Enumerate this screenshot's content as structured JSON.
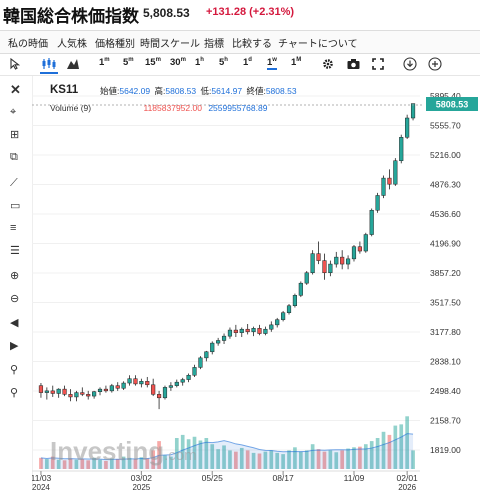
{
  "header": {
    "title": "韓国総合株価指数",
    "price": "5,808.53",
    "change": "+131.28 (+2.31%)"
  },
  "menu": [
    "私の時価",
    "人気株",
    "価格種別",
    "時間スケール",
    "指標",
    "比較する",
    "チャートについて"
  ],
  "timeframes": [
    {
      "label": "1",
      "sup": "m"
    },
    {
      "label": "5",
      "sup": "m"
    },
    {
      "label": "15",
      "sup": "m"
    },
    {
      "label": "30",
      "sup": "m"
    },
    {
      "label": "1",
      "sup": "h"
    },
    {
      "label": "5",
      "sup": "h"
    },
    {
      "label": "1",
      "sup": "d"
    },
    {
      "label": "1",
      "sup": "w"
    },
    {
      "label": "1",
      "sup": "M"
    }
  ],
  "active_timeframe_index": 7,
  "legend": {
    "symbol": "KS11",
    "open_label": "始値:",
    "open": "5642.09",
    "high_label": "高:",
    "high": "5808.53",
    "low_label": "低:",
    "low": "5614.97",
    "close_label": "終値:",
    "close": "5808.53",
    "volume_label": "Volume (9)",
    "volume_value": "1185837952.00",
    "volume_ma": "2559955768.89"
  },
  "watermark": "Investing",
  "watermark_suffix": ".com",
  "current_price_label": "5808.53",
  "colors": {
    "up": "#26a69a",
    "down": "#ef5350",
    "accent": "#1e6fd9",
    "change": "#d4183d"
  },
  "icons": {
    "cursor": "cursor-icon",
    "candles": "candlestick-icon",
    "mountain": "area-chart-icon",
    "settings": "gear-icon",
    "camera": "camera-icon",
    "fullscreen": "fullscreen-icon",
    "download": "download-icon",
    "add": "add-icon"
  },
  "chart_data": {
    "type": "candlestick",
    "interval": "1w",
    "y_ticks": [
      "5895.40",
      "5555.70",
      "5216.00",
      "4876.30",
      "4536.60",
      "4196.90",
      "3857.20",
      "3517.50",
      "3177.80",
      "2838.10",
      "2498.40",
      "2158.70",
      "1819.00"
    ],
    "x_ticks": [
      {
        "label": "11/03",
        "year": "2024"
      },
      {
        "label": "03/02",
        "year": "2025"
      },
      {
        "label": "05/25",
        "year": ""
      },
      {
        "label": "08/17",
        "year": ""
      },
      {
        "label": "11/09",
        "year": ""
      },
      {
        "label": "02/01",
        "year": "2026"
      }
    ],
    "ylim": [
      1819.0,
      5895.4
    ],
    "candles": [
      [
        2560,
        2590,
        2420,
        2480
      ],
      [
        2480,
        2540,
        2400,
        2500
      ],
      [
        2500,
        2560,
        2430,
        2470
      ],
      [
        2470,
        2530,
        2420,
        2520
      ],
      [
        2520,
        2560,
        2440,
        2460
      ],
      [
        2460,
        2520,
        2380,
        2430
      ],
      [
        2430,
        2500,
        2380,
        2480
      ],
      [
        2480,
        2540,
        2440,
        2460
      ],
      [
        2460,
        2500,
        2400,
        2440
      ],
      [
        2440,
        2500,
        2410,
        2490
      ],
      [
        2490,
        2540,
        2450,
        2520
      ],
      [
        2520,
        2560,
        2480,
        2500
      ],
      [
        2500,
        2580,
        2480,
        2560
      ],
      [
        2560,
        2600,
        2500,
        2530
      ],
      [
        2530,
        2610,
        2510,
        2590
      ],
      [
        2590,
        2680,
        2560,
        2640
      ],
      [
        2640,
        2680,
        2560,
        2580
      ],
      [
        2580,
        2640,
        2540,
        2610
      ],
      [
        2610,
        2660,
        2540,
        2570
      ],
      [
        2570,
        2640,
        2440,
        2460
      ],
      [
        2460,
        2500,
        2290,
        2420
      ],
      [
        2420,
        2560,
        2400,
        2540
      ],
      [
        2540,
        2600,
        2500,
        2560
      ],
      [
        2560,
        2630,
        2540,
        2600
      ],
      [
        2600,
        2650,
        2560,
        2630
      ],
      [
        2630,
        2700,
        2600,
        2680
      ],
      [
        2680,
        2800,
        2660,
        2770
      ],
      [
        2770,
        2900,
        2750,
        2880
      ],
      [
        2880,
        2960,
        2840,
        2950
      ],
      [
        2950,
        3070,
        2920,
        3050
      ],
      [
        3050,
        3110,
        3020,
        3080
      ],
      [
        3080,
        3160,
        3040,
        3130
      ],
      [
        3130,
        3230,
        3100,
        3200
      ],
      [
        3200,
        3260,
        3120,
        3170
      ],
      [
        3170,
        3230,
        3120,
        3210
      ],
      [
        3210,
        3270,
        3150,
        3180
      ],
      [
        3180,
        3240,
        3130,
        3220
      ],
      [
        3220,
        3260,
        3140,
        3160
      ],
      [
        3160,
        3240,
        3140,
        3210
      ],
      [
        3210,
        3300,
        3180,
        3260
      ],
      [
        3260,
        3340,
        3230,
        3320
      ],
      [
        3320,
        3420,
        3300,
        3400
      ],
      [
        3400,
        3500,
        3380,
        3480
      ],
      [
        3480,
        3620,
        3460,
        3600
      ],
      [
        3600,
        3760,
        3580,
        3740
      ],
      [
        3740,
        3880,
        3720,
        3860
      ],
      [
        3860,
        4120,
        3840,
        4080
      ],
      [
        4080,
        4220,
        3960,
        4000
      ],
      [
        4000,
        4080,
        3780,
        3860
      ],
      [
        3860,
        4000,
        3820,
        3960
      ],
      [
        3960,
        4100,
        3920,
        4040
      ],
      [
        4040,
        4120,
        3900,
        3960
      ],
      [
        3960,
        4060,
        3900,
        4020
      ],
      [
        4020,
        4180,
        3990,
        4160
      ],
      [
        4160,
        4220,
        4080,
        4110
      ],
      [
        4110,
        4320,
        4090,
        4300
      ],
      [
        4300,
        4600,
        4280,
        4580
      ],
      [
        4580,
        4780,
        4550,
        4750
      ],
      [
        4750,
        4980,
        4720,
        4950
      ],
      [
        4950,
        5050,
        4820,
        4880
      ],
      [
        4880,
        5180,
        4860,
        5150
      ],
      [
        5150,
        5450,
        5120,
        5420
      ],
      [
        5420,
        5680,
        5400,
        5642
      ],
      [
        5642,
        5808,
        5615,
        5808
      ]
    ],
    "volumes": [
      0.18,
      0.16,
      0.2,
      0.15,
      0.14,
      0.17,
      0.15,
      0.16,
      0.14,
      0.18,
      0.15,
      0.13,
      0.17,
      0.16,
      0.2,
      0.18,
      0.16,
      0.19,
      0.17,
      0.3,
      0.45,
      0.22,
      0.2,
      0.5,
      0.55,
      0.48,
      0.52,
      0.46,
      0.5,
      0.4,
      0.32,
      0.38,
      0.3,
      0.28,
      0.34,
      0.3,
      0.26,
      0.25,
      0.28,
      0.3,
      0.26,
      0.24,
      0.3,
      0.35,
      0.28,
      0.3,
      0.4,
      0.32,
      0.28,
      0.3,
      0.27,
      0.3,
      0.33,
      0.35,
      0.36,
      0.4,
      0.45,
      0.5,
      0.6,
      0.55,
      0.7,
      0.72,
      0.85,
      0.3
    ]
  }
}
